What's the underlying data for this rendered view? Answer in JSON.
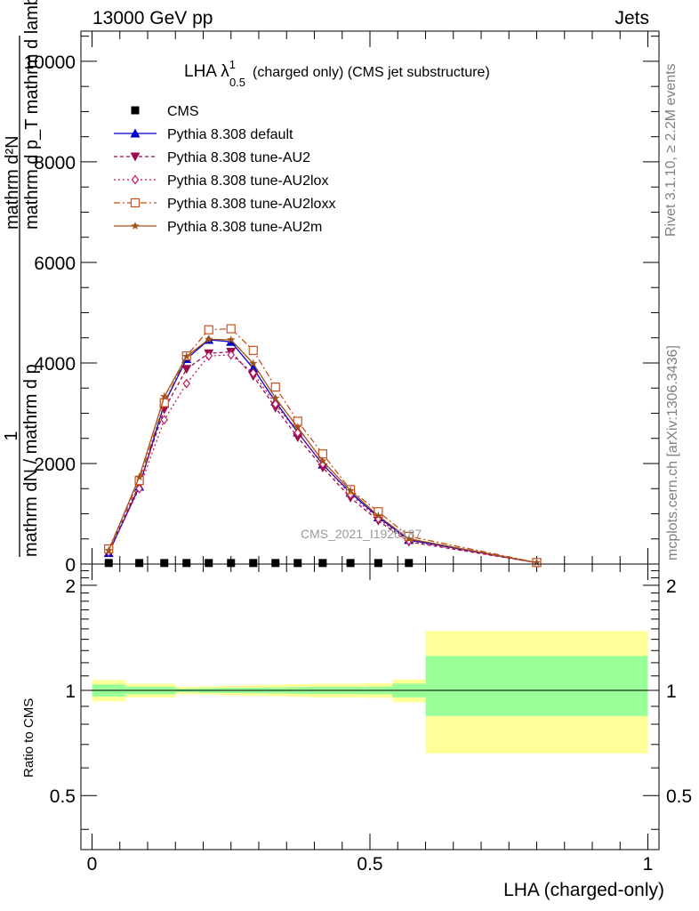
{
  "header": {
    "left": "13000 GeV pp",
    "right": "Jets"
  },
  "side_labels": {
    "rivet": "Rivet 3.1.10, ≥ 2.2M events",
    "mcplots": "mcplots.cern.ch [arXiv:1306.3436]"
  },
  "chart_data": {
    "type": "line",
    "title": {
      "main": "LHA λ",
      "sup": "1",
      "sub": "0.5",
      "rest": "(charged only) (CMS jet substructure)"
    },
    "watermark": "CMS_2021_I1920187",
    "xlabel": "LHA (charged-only)",
    "ylabel_main": {
      "prefix": "1",
      "prefix_den": "mathrm dN / mathrm d p",
      "top": "mathrm d²N",
      "den": "mathrm d p_T mathrm d lambda"
    },
    "ylabel_ratio": "Ratio to CMS",
    "xlim": [
      -0.02,
      1.02
    ],
    "ylim": [
      0,
      10600
    ],
    "x_ticks": [
      0,
      0.5,
      1
    ],
    "x_tick_labels": [
      "0",
      "0.5",
      "1"
    ],
    "y_ticks": [
      0,
      2000,
      4000,
      6000,
      8000,
      10000
    ],
    "y_tick_labels": [
      "0",
      "2000",
      "4000",
      "6000",
      "8000",
      "10000"
    ],
    "ratio_ylim": [
      0.35,
      2.3
    ],
    "ratio_ticks": [
      0.5,
      1,
      2
    ],
    "ratio_tick_labels": [
      "0.5",
      "1",
      "2"
    ],
    "legend_position": "top-left",
    "x": [
      0.03,
      0.085,
      0.13,
      0.17,
      0.21,
      0.25,
      0.29,
      0.33,
      0.37,
      0.415,
      0.465,
      0.515,
      0.57,
      0.8
    ],
    "series": [
      {
        "name": "CMS",
        "color": "#000000",
        "marker": "square",
        "dash": "none",
        "values": [
          20,
          20,
          20,
          20,
          20,
          20,
          20,
          20,
          20,
          20,
          20,
          20,
          20,
          null
        ]
      },
      {
        "name": "Pythia 8.308 default",
        "color": "#0000cc",
        "marker": "triangle-up",
        "dash": "none",
        "values": [
          220,
          1540,
          3190,
          4080,
          4460,
          4420,
          3890,
          3230,
          2620,
          1980,
          1420,
          930,
          480,
          28
        ]
      },
      {
        "name": "Pythia 8.308 tune-AU2",
        "color": "#9b0b50",
        "marker": "triangle-down",
        "dash": "4,3",
        "values": [
          250,
          1580,
          3080,
          3880,
          4190,
          4220,
          3740,
          3110,
          2520,
          1920,
          1320,
          860,
          440,
          26
        ]
      },
      {
        "name": "Pythia 8.308 tune-AU2lox",
        "color": "#c0185e",
        "marker": "diamond",
        "dash": "2,3",
        "values": [
          240,
          1500,
          2870,
          3590,
          4140,
          4160,
          3800,
          3180,
          2610,
          1990,
          1380,
          900,
          460,
          27
        ]
      },
      {
        "name": "Pythia 8.308 tune-AU2loxx",
        "color": "#c8501e",
        "marker": "open-square",
        "dash": "7,3,2,3",
        "values": [
          300,
          1660,
          3210,
          4140,
          4660,
          4680,
          4250,
          3520,
          2840,
          2190,
          1480,
          1040,
          550,
          30
        ]
      },
      {
        "name": "Pythia 8.308 tune-AU2m",
        "color": "#a0521a",
        "marker": "star",
        "dash": "none",
        "values": [
          270,
          1730,
          3330,
          4130,
          4470,
          4460,
          3990,
          3300,
          2720,
          2050,
          1460,
          960,
          500,
          29
        ]
      }
    ],
    "ratio_bands": [
      {
        "x0": 0.0,
        "x1": 0.06,
        "yellow": [
          0.93,
          1.07
        ],
        "green": [
          0.96,
          1.04
        ]
      },
      {
        "x0": 0.06,
        "x1": 0.15,
        "yellow": [
          0.955,
          1.045
        ],
        "green": [
          0.975,
          1.025
        ]
      },
      {
        "x0": 0.15,
        "x1": 0.19,
        "yellow": [
          0.975,
          1.025
        ],
        "green": [
          0.988,
          1.012
        ]
      },
      {
        "x0": 0.19,
        "x1": 0.23,
        "yellow": [
          0.972,
          1.028
        ],
        "green": [
          0.985,
          1.015
        ]
      },
      {
        "x0": 0.23,
        "x1": 0.27,
        "yellow": [
          0.968,
          1.032
        ],
        "green": [
          0.983,
          1.017
        ]
      },
      {
        "x0": 0.27,
        "x1": 0.31,
        "yellow": [
          0.965,
          1.035
        ],
        "green": [
          0.982,
          1.018
        ]
      },
      {
        "x0": 0.31,
        "x1": 0.35,
        "yellow": [
          0.962,
          1.038
        ],
        "green": [
          0.98,
          1.02
        ]
      },
      {
        "x0": 0.35,
        "x1": 0.39,
        "yellow": [
          0.958,
          1.042
        ],
        "green": [
          0.978,
          1.022
        ]
      },
      {
        "x0": 0.39,
        "x1": 0.44,
        "yellow": [
          0.955,
          1.045
        ],
        "green": [
          0.976,
          1.024
        ]
      },
      {
        "x0": 0.44,
        "x1": 0.49,
        "yellow": [
          0.955,
          1.045
        ],
        "green": [
          0.976,
          1.024
        ]
      },
      {
        "x0": 0.49,
        "x1": 0.54,
        "yellow": [
          0.952,
          1.048
        ],
        "green": [
          0.975,
          1.025
        ]
      },
      {
        "x0": 0.54,
        "x1": 0.6,
        "yellow": [
          0.925,
          1.075
        ],
        "green": [
          0.955,
          1.045
        ]
      },
      {
        "x0": 0.6,
        "x1": 1.0,
        "yellow": [
          0.66,
          1.48
        ],
        "green": [
          0.845,
          1.255
        ]
      }
    ]
  }
}
